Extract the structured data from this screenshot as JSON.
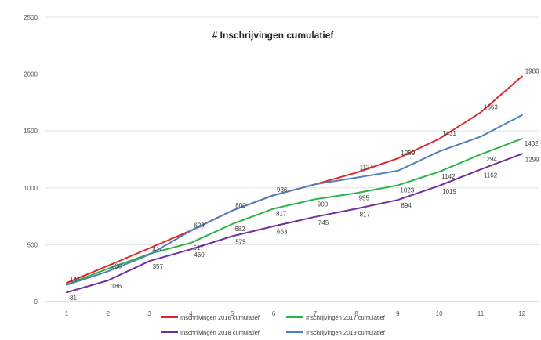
{
  "chart_data": {
    "type": "line",
    "title": "# Inschrijvingen cumulatief",
    "xlabel": "",
    "ylabel": "",
    "x": [
      1,
      2,
      3,
      4,
      5,
      6,
      7,
      8,
      9,
      10,
      11,
      12
    ],
    "ylim": [
      0,
      2500
    ],
    "yticks": [
      0,
      500,
      1000,
      1500,
      2000,
      2500
    ],
    "grid": true,
    "legend_position": "bottom",
    "series": [
      {
        "name": "Inschrijvingen 2016 cumulatief",
        "color": "#e0262b",
        "values": [
          165,
          315,
          470,
          625,
          800,
          935,
          1031,
          1134,
          1259,
          1431,
          1663,
          1980
        ],
        "labels": [
          null,
          null,
          null,
          null,
          null,
          null,
          null,
          "1134",
          "1259",
          "1431",
          "1663",
          "1980"
        ]
      },
      {
        "name": "Inschrijvingen 2017 cumulatief",
        "color": "#2db34a",
        "values": [
          150,
          290,
          420,
          517,
          682,
          817,
          900,
          955,
          1023,
          1142,
          1294,
          1432
        ],
        "labels": [
          null,
          null,
          null,
          "517",
          "682",
          "817",
          "900",
          "955",
          "1023",
          "1142",
          "1294",
          "1432"
        ]
      },
      {
        "name": "Inschrijvingen 2018 cumulatief",
        "color": "#7030a0",
        "values": [
          81,
          186,
          357,
          460,
          575,
          663,
          745,
          817,
          894,
          1019,
          1162,
          1299
        ],
        "labels": [
          "81",
          "186",
          "357",
          "460",
          "575",
          "663",
          "745",
          "817",
          "894",
          "1019",
          "1162",
          "1299"
        ]
      },
      {
        "name": "Inschrijvingen 2019 cumulatief",
        "color": "#4f81bd",
        "values": [
          147,
          266,
          414,
          623,
          800,
          936,
          1031,
          1090,
          1150,
          1320,
          1450,
          1640
        ],
        "labels": [
          "147",
          "266",
          "414",
          "623",
          "800",
          "936",
          null,
          null,
          null,
          null,
          null,
          null
        ]
      }
    ]
  }
}
